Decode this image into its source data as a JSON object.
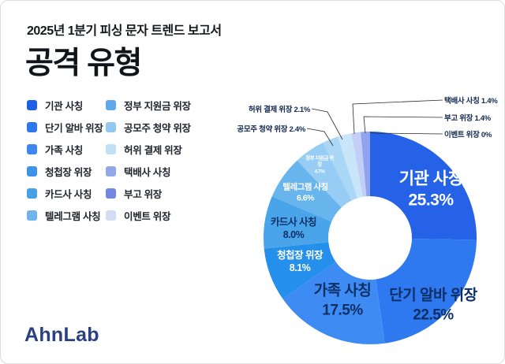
{
  "header": {
    "subtitle": "2025년 1분기 피싱 문자 트렌드 보고서",
    "title": "공격 유형"
  },
  "brand": {
    "logo_text": "AhnLab"
  },
  "colors": {
    "navy_text": "#0d2f66",
    "callout_text": "#13294f",
    "callout_line": "#2a2a2a",
    "accent_blue": "#2562e8"
  },
  "chart_data": {
    "type": "pie",
    "donut": true,
    "title": "공격 유형",
    "unit": "%",
    "legend_position": "left",
    "slices": [
      {
        "label": "기관 사칭",
        "value": 25.3,
        "pct_display": "25.3%",
        "pie_color": "#2562e8",
        "legend_color": "#1d5fe4"
      },
      {
        "label": "단기 알바 위장",
        "value": 22.5,
        "pct_display": "22.5%",
        "pie_color": "#2e78f0",
        "legend_color": "#2e78ee"
      },
      {
        "label": "가족 사칭",
        "value": 17.5,
        "pct_display": "17.5%",
        "pie_color": "#3f8bf4",
        "legend_color": "#3c87f0"
      },
      {
        "label": "청첩장 위장",
        "value": 8.1,
        "pct_display": "8.1%",
        "pie_color": "#258fec",
        "legend_color": "#3d93e8"
      },
      {
        "label": "카드사 사칭",
        "value": 8.0,
        "pct_display": "8.0%",
        "pie_color": "#49a4ea",
        "legend_color": "#47a0e6"
      },
      {
        "label": "텔레그램 사칭",
        "value": 6.6,
        "pct_display": "6.6%",
        "pie_color": "#68b5ee",
        "legend_color": "#6fb4ea"
      },
      {
        "label": "정부 지원금 위장",
        "value": 4.7,
        "pct_display": "4.7%",
        "pie_color": "#97ccf4",
        "legend_color": "#61a8ea"
      },
      {
        "label": "공모주 청약 위장",
        "value": 2.4,
        "pct_display": "2.4%",
        "pie_color": "#abd7f6",
        "legend_color": "#92c8f0"
      },
      {
        "label": "허위 결제 위장",
        "value": 2.1,
        "pct_display": "2.1%",
        "pie_color": "#c9e5fa",
        "legend_color": "#bfe0f6"
      },
      {
        "label": "택배사 사칭",
        "value": 1.4,
        "pct_display": "1.4%",
        "pie_color": "#c2cef6",
        "legend_color": "#91a8e6"
      },
      {
        "label": "부고 위장",
        "value": 1.4,
        "pct_display": "1.4%",
        "pie_color": "#8fa3ee",
        "legend_color": "#7487e0"
      },
      {
        "label": "이벤트 위장",
        "value": 0,
        "pct_display": "0%",
        "pie_color": "#dfe6fb",
        "legend_color": "#d3dcf4"
      }
    ]
  }
}
